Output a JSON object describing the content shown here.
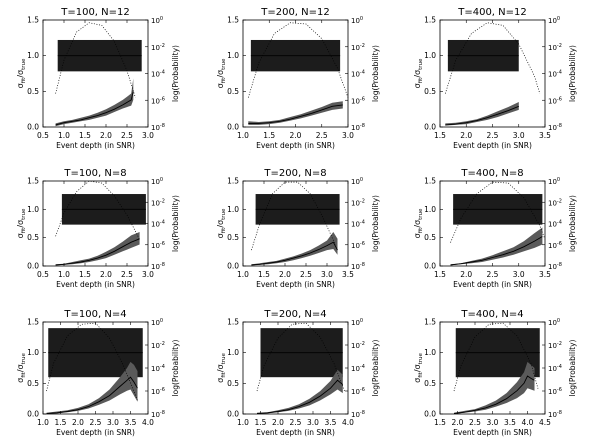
{
  "figure": {
    "left_axis_label": "σ_fit/σ_true",
    "right_axis_label": "log(Probability)",
    "x_axis_label": "Event depth (in SNR)"
  },
  "chart_data": [
    {
      "type": "area",
      "title": "T=100, N=12",
      "xlabel": "Event depth (in SNR)",
      "ylabel": "σ_fit/σ_true",
      "ylabel_right": "log(Probability)",
      "xlim": [
        0.5,
        3.0
      ],
      "xticks": [
        "0.5",
        "1.0",
        "1.5",
        "2.0",
        "2.5",
        "3.0"
      ],
      "ylim": [
        0,
        1.5
      ],
      "yticks": [
        "0.0",
        "0.5",
        "1.0",
        "1.5"
      ],
      "y2_ticks": [
        "10^0",
        "10^-2",
        "10^-4",
        "10^-6",
        "10^-8"
      ],
      "y2_exponents": [
        0,
        -2,
        -4,
        -6,
        -8
      ],
      "series": [
        {
          "x": [
            0.8,
            1.0,
            1.2,
            1.4,
            1.6,
            1.8,
            2.0,
            2.2,
            2.4,
            2.6,
            2.65
          ],
          "y": [
            0.03,
            0.06,
            0.08,
            0.1,
            0.13,
            0.16,
            0.2,
            0.25,
            0.31,
            0.38,
            0.5
          ],
          "y_low": [
            0.01,
            0.04,
            0.06,
            0.08,
            0.1,
            0.13,
            0.16,
            0.21,
            0.26,
            0.3,
            0.38
          ],
          "y_high": [
            0.05,
            0.08,
            0.1,
            0.13,
            0.16,
            0.2,
            0.25,
            0.31,
            0.38,
            0.47,
            0.68
          ]
        },
        {
          "x": [
            0.8,
            1.0,
            1.3,
            1.6,
            1.9,
            2.2,
            2.5,
            2.7
          ],
          "y2_exponent": [
            -5.5,
            -3.0,
            -0.9,
            -0.2,
            -0.4,
            -1.6,
            -3.8,
            -5.8
          ]
        }
      ],
      "shaded_box": {
        "x": [
          0.85,
          2.85
        ],
        "y": [
          0.78,
          1.22
        ]
      }
    },
    {
      "type": "area",
      "title": "T=200, N=12",
      "xlabel": "Event depth (in SNR)",
      "ylabel": "σ_fit/σ_true",
      "ylabel_right": "log(Probability)",
      "xlim": [
        1.0,
        3.0
      ],
      "xticks": [
        "1.0",
        "1.5",
        "2.0",
        "2.5",
        "3.0"
      ],
      "ylim": [
        0,
        1.5
      ],
      "yticks": [
        "0.0",
        "0.5",
        "1.0",
        "1.5"
      ],
      "y2_ticks": [
        "10^0",
        "10^-2",
        "10^-4",
        "10^-6",
        "10^-8"
      ],
      "y2_exponents": [
        0,
        -2,
        -4,
        -6,
        -8
      ],
      "series": [
        {
          "x": [
            1.1,
            1.3,
            1.5,
            1.7,
            1.9,
            2.1,
            2.3,
            2.5,
            2.7,
            2.9
          ],
          "y": [
            0.05,
            0.05,
            0.06,
            0.08,
            0.11,
            0.15,
            0.19,
            0.24,
            0.29,
            0.31
          ],
          "y_low": [
            0.03,
            0.03,
            0.04,
            0.06,
            0.09,
            0.12,
            0.16,
            0.2,
            0.24,
            0.26
          ],
          "y_high": [
            0.08,
            0.07,
            0.08,
            0.1,
            0.14,
            0.18,
            0.23,
            0.28,
            0.34,
            0.36
          ]
        },
        {
          "x": [
            1.1,
            1.3,
            1.6,
            1.9,
            2.2,
            2.5,
            2.8,
            3.0
          ],
          "y2_exponent": [
            -5.8,
            -3.2,
            -1.0,
            -0.2,
            -0.3,
            -1.4,
            -3.6,
            -5.8
          ]
        }
      ],
      "shaded_box": {
        "x": [
          1.15,
          2.85
        ],
        "y": [
          0.78,
          1.22
        ]
      }
    },
    {
      "type": "area",
      "title": "T=400, N=12",
      "xlabel": "Event depth (in SNR)",
      "ylabel": "σ_fit/σ_true",
      "ylabel_right": "log(Probability)",
      "xlim": [
        1.5,
        3.5
      ],
      "xticks": [
        "1.5",
        "2.0",
        "2.5",
        "3.0",
        "3.5"
      ],
      "ylim": [
        0,
        1.5
      ],
      "yticks": [
        "0.0",
        "0.5",
        "1.0",
        "1.5"
      ],
      "y2_ticks": [
        "10^0",
        "10^-2",
        "10^-4",
        "10^-6",
        "10^-8"
      ],
      "y2_exponents": [
        0,
        -2,
        -4,
        -6,
        -8
      ],
      "series": [
        {
          "x": [
            1.6,
            1.8,
            2.0,
            2.2,
            2.4,
            2.6,
            2.8,
            3.0
          ],
          "y": [
            0.03,
            0.04,
            0.06,
            0.09,
            0.13,
            0.18,
            0.23,
            0.29
          ],
          "y_low": [
            0.02,
            0.03,
            0.04,
            0.07,
            0.1,
            0.14,
            0.19,
            0.24
          ],
          "y_high": [
            0.05,
            0.06,
            0.08,
            0.11,
            0.16,
            0.22,
            0.28,
            0.35
          ]
        },
        {
          "x": [
            1.6,
            1.8,
            2.1,
            2.4,
            2.7,
            3.0,
            3.3,
            3.4
          ],
          "y2_exponent": [
            -5.5,
            -3.0,
            -1.0,
            -0.2,
            -0.4,
            -1.8,
            -4.2,
            -5.5
          ]
        }
      ],
      "shaded_box": {
        "x": [
          1.65,
          3.0
        ],
        "y": [
          0.78,
          1.22
        ]
      }
    },
    {
      "type": "area",
      "title": "T=100, N=8",
      "xlabel": "Event depth (in SNR)",
      "ylabel": "σ_fit/σ_true",
      "ylabel_right": "log(Probability)",
      "xlim": [
        0.5,
        3.0
      ],
      "xticks": [
        "0.5",
        "1.0",
        "1.5",
        "2.0",
        "2.5",
        "3.0"
      ],
      "ylim": [
        0,
        1.5
      ],
      "yticks": [
        "0.0",
        "0.5",
        "1.0",
        "1.5"
      ],
      "y2_ticks": [
        "10^0",
        "10^-2",
        "10^-4",
        "10^-6",
        "10^-8"
      ],
      "y2_exponents": [
        0,
        -2,
        -4,
        -6,
        -8
      ],
      "series": [
        {
          "x": [
            0.8,
            1.0,
            1.2,
            1.4,
            1.6,
            1.8,
            2.0,
            2.2,
            2.4,
            2.6,
            2.8
          ],
          "y": [
            0.02,
            0.03,
            0.05,
            0.07,
            0.1,
            0.14,
            0.19,
            0.26,
            0.34,
            0.42,
            0.48
          ],
          "y_low": [
            0.01,
            0.02,
            0.03,
            0.05,
            0.07,
            0.1,
            0.14,
            0.2,
            0.26,
            0.32,
            0.38
          ],
          "y_high": [
            0.03,
            0.04,
            0.07,
            0.1,
            0.13,
            0.18,
            0.25,
            0.33,
            0.43,
            0.54,
            0.6
          ]
        },
        {
          "x": [
            0.8,
            1.0,
            1.3,
            1.6,
            1.9,
            2.2,
            2.5,
            2.8
          ],
          "y2_exponent": [
            -5.2,
            -3.0,
            -1.0,
            0.0,
            -0.2,
            -1.4,
            -3.2,
            -5.5
          ]
        }
      ],
      "shaded_box": {
        "x": [
          0.95,
          2.95
        ],
        "y": [
          0.73,
          1.27
        ]
      }
    },
    {
      "type": "area",
      "title": "T=200, N=8",
      "xlabel": "Event depth (in SNR)",
      "ylabel": "σ_fit/σ_true",
      "ylabel_right": "log(Probability)",
      "xlim": [
        1.0,
        3.5
      ],
      "xticks": [
        "1.0",
        "1.5",
        "2.0",
        "2.5",
        "3.0",
        "3.5"
      ],
      "ylim": [
        0,
        1.5
      ],
      "yticks": [
        "0.0",
        "0.5",
        "1.0",
        "1.5"
      ],
      "y2_ticks": [
        "10^0",
        "10^-2",
        "10^-4",
        "10^-6",
        "10^-8"
      ],
      "y2_exponents": [
        0,
        -2,
        -4,
        -6,
        -8
      ],
      "series": [
        {
          "x": [
            1.2,
            1.4,
            1.6,
            1.8,
            2.0,
            2.2,
            2.4,
            2.6,
            2.8,
            3.0,
            3.15,
            3.25
          ],
          "y": [
            0.02,
            0.03,
            0.05,
            0.07,
            0.1,
            0.14,
            0.18,
            0.23,
            0.29,
            0.36,
            0.42,
            0.28
          ],
          "y_low": [
            0.01,
            0.02,
            0.03,
            0.05,
            0.07,
            0.1,
            0.14,
            0.18,
            0.23,
            0.28,
            0.3,
            0.2
          ],
          "y_high": [
            0.03,
            0.05,
            0.07,
            0.09,
            0.13,
            0.17,
            0.22,
            0.28,
            0.36,
            0.45,
            0.6,
            0.48
          ]
        },
        {
          "x": [
            1.2,
            1.4,
            1.7,
            2.0,
            2.3,
            2.6,
            2.9,
            3.2
          ],
          "y2_exponent": [
            -6.5,
            -4.0,
            -1.2,
            -0.1,
            -0.1,
            -1.2,
            -3.4,
            -6.0
          ]
        }
      ],
      "shaded_box": {
        "x": [
          1.3,
          3.3
        ],
        "y": [
          0.73,
          1.27
        ]
      }
    },
    {
      "type": "area",
      "title": "T=400, N=8",
      "xlabel": "Event depth (in SNR)",
      "ylabel": "σ_fit/σ_true",
      "ylabel_right": "log(Probability)",
      "xlim": [
        1.5,
        3.5
      ],
      "xticks": [
        "1.5",
        "2.0",
        "2.5",
        "3.0",
        "3.5"
      ],
      "ylim": [
        0,
        1.5
      ],
      "yticks": [
        "0.0",
        "0.5",
        "1.0",
        "1.5"
      ],
      "y2_ticks": [
        "10^0",
        "10^-2",
        "10^-4",
        "10^-6",
        "10^-8"
      ],
      "y2_exponents": [
        0,
        -2,
        -4,
        -6,
        -8
      ],
      "series": [
        {
          "x": [
            1.7,
            1.9,
            2.1,
            2.3,
            2.5,
            2.7,
            2.9,
            3.1,
            3.3,
            3.45
          ],
          "y": [
            0.02,
            0.04,
            0.07,
            0.1,
            0.15,
            0.2,
            0.26,
            0.34,
            0.44,
            0.52
          ],
          "y_low": [
            0.01,
            0.03,
            0.05,
            0.07,
            0.11,
            0.15,
            0.2,
            0.26,
            0.32,
            0.38
          ],
          "y_high": [
            0.03,
            0.05,
            0.09,
            0.13,
            0.19,
            0.26,
            0.33,
            0.44,
            0.58,
            0.68
          ]
        },
        {
          "x": [
            1.7,
            1.9,
            2.2,
            2.5,
            2.8,
            3.1,
            3.4,
            3.5
          ],
          "y2_exponent": [
            -5.8,
            -3.5,
            -1.2,
            -0.1,
            -0.2,
            -1.6,
            -4.2,
            -5.5
          ]
        }
      ],
      "shaded_box": {
        "x": [
          1.75,
          3.45
        ],
        "y": [
          0.73,
          1.27
        ]
      }
    },
    {
      "type": "area",
      "title": "T=100, N=4",
      "xlabel": "Event depth (in SNR)",
      "ylabel": "σ_fit/σ_true",
      "ylabel_right": "log(Probability)",
      "xlim": [
        1.0,
        4.0
      ],
      "xticks": [
        "1.0",
        "1.5",
        "2.0",
        "2.5",
        "3.0",
        "3.5",
        "4.0"
      ],
      "ylim": [
        0,
        1.5
      ],
      "yticks": [
        "0.0",
        "0.5",
        "1.0",
        "1.5"
      ],
      "y2_ticks": [
        "10^0",
        "10^-2",
        "10^-4",
        "10^-6",
        "10^-8"
      ],
      "y2_exponents": [
        0,
        -2,
        -4,
        -6,
        -8
      ],
      "series": [
        {
          "x": [
            1.1,
            1.4,
            1.7,
            2.0,
            2.3,
            2.6,
            2.9,
            3.2,
            3.4,
            3.5,
            3.6,
            3.7
          ],
          "y": [
            0.01,
            0.02,
            0.04,
            0.07,
            0.12,
            0.2,
            0.3,
            0.45,
            0.55,
            0.6,
            0.52,
            0.42
          ],
          "y_low": [
            0.0,
            0.01,
            0.03,
            0.05,
            0.09,
            0.15,
            0.22,
            0.32,
            0.38,
            0.4,
            0.3,
            0.2
          ],
          "y_high": [
            0.02,
            0.04,
            0.06,
            0.1,
            0.16,
            0.26,
            0.4,
            0.6,
            0.75,
            0.85,
            0.8,
            0.7
          ]
        },
        {
          "x": [
            1.1,
            1.3,
            1.7,
            2.1,
            2.5,
            2.9,
            3.3,
            3.7
          ],
          "y2_exponent": [
            -6.0,
            -3.6,
            -1.2,
            -0.2,
            -0.1,
            -1.4,
            -3.8,
            -6.8
          ]
        }
      ],
      "shaded_box": {
        "x": [
          1.15,
          3.85
        ],
        "y": [
          0.6,
          1.4
        ]
      }
    },
    {
      "type": "area",
      "title": "T=200, N=4",
      "xlabel": "Event depth (in SNR)",
      "ylabel": "σ_fit/σ_true",
      "ylabel_right": "log(Probability)",
      "xlim": [
        1.0,
        4.0
      ],
      "xticks": [
        "1.0",
        "1.5",
        "2.0",
        "2.5",
        "3.0",
        "3.5",
        "4.0"
      ],
      "ylim": [
        0,
        1.5
      ],
      "yticks": [
        "0.0",
        "0.5",
        "1.0",
        "1.5"
      ],
      "y2_ticks": [
        "10^0",
        "10^-2",
        "10^-4",
        "10^-6",
        "10^-8"
      ],
      "y2_exponents": [
        0,
        -2,
        -4,
        -6,
        -8
      ],
      "series": [
        {
          "x": [
            1.4,
            1.7,
            2.0,
            2.3,
            2.6,
            2.9,
            3.2,
            3.5,
            3.7,
            3.85
          ],
          "y": [
            0.01,
            0.02,
            0.04,
            0.07,
            0.12,
            0.19,
            0.29,
            0.42,
            0.55,
            0.48
          ],
          "y_low": [
            0.0,
            0.01,
            0.03,
            0.05,
            0.09,
            0.14,
            0.22,
            0.32,
            0.4,
            0.34
          ],
          "y_high": [
            0.02,
            0.03,
            0.06,
            0.1,
            0.16,
            0.25,
            0.37,
            0.54,
            0.72,
            0.64
          ]
        },
        {
          "x": [
            1.4,
            1.6,
            2.0,
            2.4,
            2.8,
            3.2,
            3.6,
            3.9
          ],
          "y2_exponent": [
            -6.0,
            -3.8,
            -1.4,
            -0.2,
            -0.1,
            -1.3,
            -3.6,
            -6.0
          ]
        }
      ],
      "shaded_box": {
        "x": [
          1.5,
          3.85
        ],
        "y": [
          0.6,
          1.4
        ]
      }
    },
    {
      "type": "area",
      "title": "T=400, N=4",
      "xlabel": "Event depth (in SNR)",
      "ylabel": "σ_fit/σ_true",
      "ylabel_right": "log(Probability)",
      "xlim": [
        1.5,
        4.5
      ],
      "xticks": [
        "1.5",
        "2.0",
        "2.5",
        "3.0",
        "3.5",
        "4.0",
        "4.5"
      ],
      "ylim": [
        0,
        1.5
      ],
      "yticks": [
        "0.0",
        "0.5",
        "1.0",
        "1.5"
      ],
      "y2_ticks": [
        "10^0",
        "10^-2",
        "10^-4",
        "10^-6",
        "10^-8"
      ],
      "y2_exponents": [
        0,
        -2,
        -4,
        -6,
        -8
      ],
      "series": [
        {
          "x": [
            1.9,
            2.2,
            2.5,
            2.8,
            3.1,
            3.4,
            3.7,
            3.9,
            4.0,
            4.1,
            4.2
          ],
          "y": [
            0.01,
            0.03,
            0.06,
            0.1,
            0.16,
            0.25,
            0.38,
            0.5,
            0.62,
            0.58,
            0.55
          ],
          "y_low": [
            0.0,
            0.02,
            0.04,
            0.07,
            0.12,
            0.18,
            0.26,
            0.34,
            0.42,
            0.4,
            0.38
          ],
          "y_high": [
            0.02,
            0.05,
            0.08,
            0.14,
            0.22,
            0.34,
            0.52,
            0.68,
            0.85,
            0.8,
            0.75
          ]
        },
        {
          "x": [
            1.9,
            2.1,
            2.5,
            2.9,
            3.3,
            3.7,
            4.1,
            4.3
          ],
          "y2_exponent": [
            -6.0,
            -3.8,
            -1.3,
            -0.2,
            -0.1,
            -1.2,
            -3.6,
            -5.8
          ]
        }
      ],
      "shaded_box": {
        "x": [
          1.95,
          4.35
        ],
        "y": [
          0.6,
          1.4
        ]
      }
    }
  ]
}
